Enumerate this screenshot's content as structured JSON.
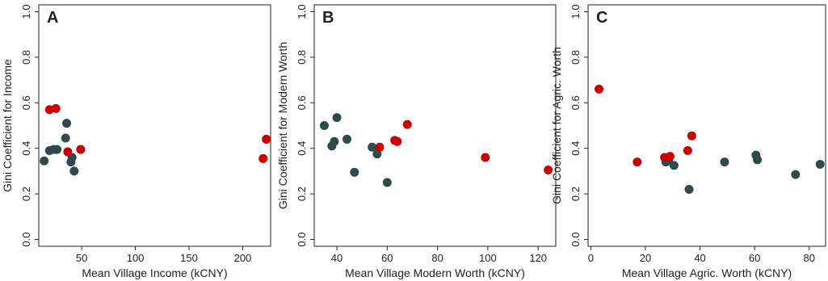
{
  "chart_data": [
    {
      "type": "scatter",
      "panel_letter": "A",
      "xlabel": "Mean Village Income (kCNY)",
      "ylabel": "Gini Coefficient for Income",
      "xticks": [
        50,
        100,
        150,
        200
      ],
      "xlim": [
        10,
        226
      ],
      "yticks": [
        0.0,
        0.2,
        0.4,
        0.6,
        0.8,
        1.0
      ],
      "ylim": [
        -0.03,
        1.03
      ],
      "grid": false,
      "colors": {
        "gray": "#2f4a4a",
        "red": "#cc0000"
      },
      "series": [
        {
          "color": "gray",
          "points": [
            {
              "x": 15,
              "y": 0.345
            },
            {
              "x": 20,
              "y": 0.39
            },
            {
              "x": 24,
              "y": 0.395
            },
            {
              "x": 27,
              "y": 0.395
            },
            {
              "x": 35,
              "y": 0.445
            },
            {
              "x": 36,
              "y": 0.51
            },
            {
              "x": 40,
              "y": 0.34
            },
            {
              "x": 41,
              "y": 0.36
            },
            {
              "x": 43,
              "y": 0.3
            }
          ]
        },
        {
          "color": "red",
          "points": [
            {
              "x": 20,
              "y": 0.57
            },
            {
              "x": 26,
              "y": 0.575
            },
            {
              "x": 37,
              "y": 0.385
            },
            {
              "x": 49,
              "y": 0.395
            },
            {
              "x": 219,
              "y": 0.355
            },
            {
              "x": 222,
              "y": 0.44
            }
          ]
        }
      ]
    },
    {
      "type": "scatter",
      "panel_letter": "B",
      "xlabel": "Mean Village Modern Worth (kCNY)",
      "ylabel": "Gini Coefficient for Modern Worth",
      "xticks": [
        40,
        60,
        80,
        100,
        120
      ],
      "xlim": [
        31,
        127
      ],
      "yticks": [
        0.0,
        0.2,
        0.4,
        0.6,
        0.8,
        1.0
      ],
      "ylim": [
        -0.03,
        1.03
      ],
      "grid": false,
      "colors": {
        "gray": "#2f4a4a",
        "red": "#cc0000"
      },
      "series": [
        {
          "color": "gray",
          "points": [
            {
              "x": 35,
              "y": 0.5
            },
            {
              "x": 38,
              "y": 0.41
            },
            {
              "x": 39,
              "y": 0.43
            },
            {
              "x": 40,
              "y": 0.535
            },
            {
              "x": 44,
              "y": 0.44
            },
            {
              "x": 47,
              "y": 0.295
            },
            {
              "x": 54,
              "y": 0.405
            },
            {
              "x": 56,
              "y": 0.375
            },
            {
              "x": 60,
              "y": 0.25
            }
          ]
        },
        {
          "color": "red",
          "points": [
            {
              "x": 57,
              "y": 0.405
            },
            {
              "x": 63,
              "y": 0.435
            },
            {
              "x": 64,
              "y": 0.43
            },
            {
              "x": 68,
              "y": 0.505
            },
            {
              "x": 99,
              "y": 0.36
            },
            {
              "x": 124,
              "y": 0.305
            }
          ]
        }
      ]
    },
    {
      "type": "scatter",
      "panel_letter": "C",
      "xlabel": "Mean Village Agric. Worth (kCNY)",
      "ylabel": "Gini Coefficient for Agric. Worth",
      "xticks": [
        0,
        20,
        40,
        60,
        80
      ],
      "xlim": [
        -1,
        86
      ],
      "yticks": [
        0.0,
        0.2,
        0.4,
        0.6,
        0.8,
        1.0
      ],
      "ylim": [
        -0.03,
        1.03
      ],
      "grid": false,
      "colors": {
        "gray": "#2f4a4a",
        "red": "#cc0000"
      },
      "series": [
        {
          "color": "gray",
          "points": [
            {
              "x": 27.5,
              "y": 0.34
            },
            {
              "x": 28.5,
              "y": 0.345
            },
            {
              "x": 30.5,
              "y": 0.325
            },
            {
              "x": 36,
              "y": 0.22
            },
            {
              "x": 49,
              "y": 0.34
            },
            {
              "x": 60.5,
              "y": 0.37
            },
            {
              "x": 61,
              "y": 0.35
            },
            {
              "x": 75,
              "y": 0.285
            },
            {
              "x": 84,
              "y": 0.33
            }
          ]
        },
        {
          "color": "red",
          "points": [
            {
              "x": 3,
              "y": 0.66
            },
            {
              "x": 17,
              "y": 0.34
            },
            {
              "x": 27,
              "y": 0.36
            },
            {
              "x": 29,
              "y": 0.365
            },
            {
              "x": 35.5,
              "y": 0.39
            },
            {
              "x": 37,
              "y": 0.455
            }
          ]
        }
      ]
    }
  ]
}
